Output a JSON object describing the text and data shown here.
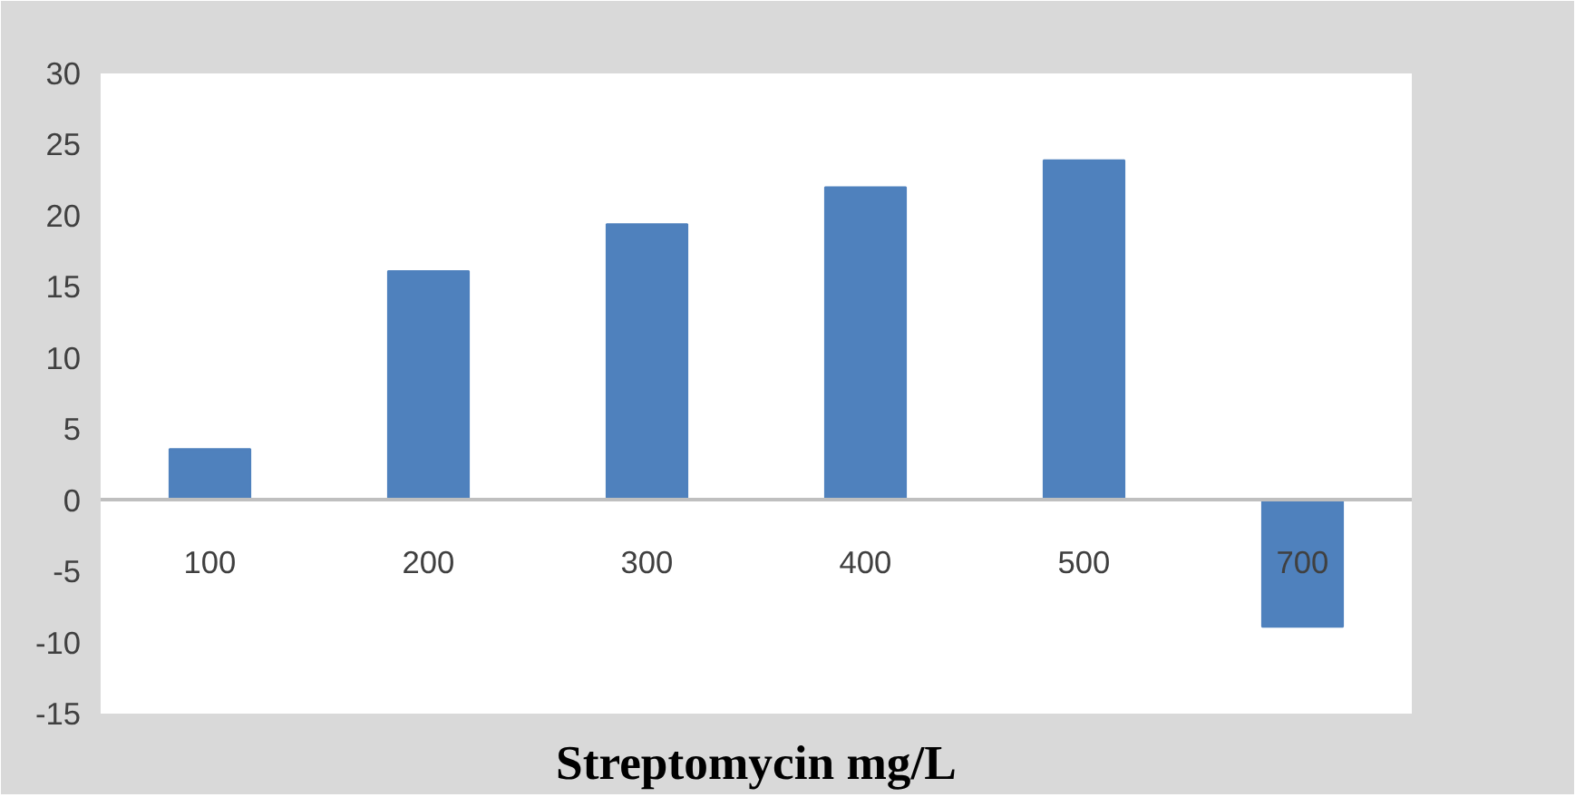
{
  "chart_data": {
    "type": "bar",
    "xlabel": "Streptomycin mg/L",
    "categories": [
      "100",
      "200",
      "300",
      "400",
      "500",
      "700"
    ],
    "values": [
      3.6,
      16.1,
      19.4,
      22,
      23.9,
      -8.9
    ],
    "color": "#4f81bd",
    "ylim": [
      -15,
      30
    ],
    "yticks": [
      -15,
      -10,
      -5,
      0,
      5,
      10,
      15,
      20,
      25,
      30
    ],
    "grid": false
  }
}
